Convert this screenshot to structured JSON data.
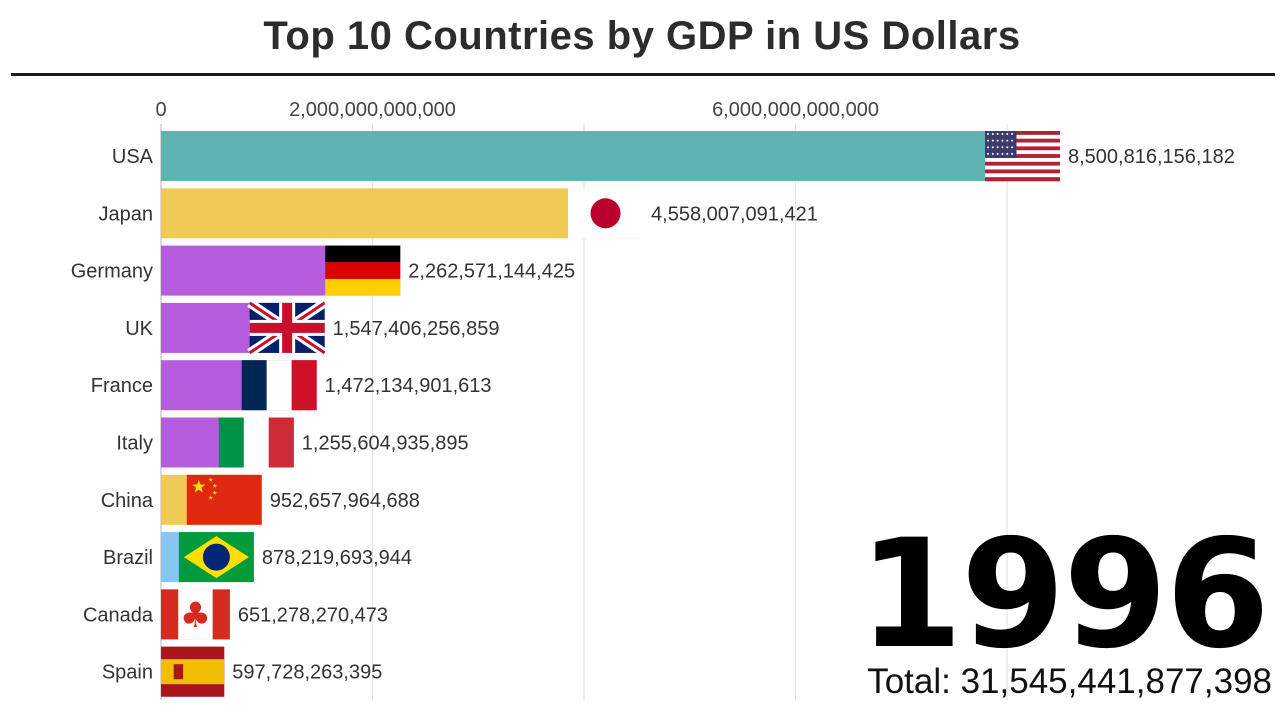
{
  "title": "Top 10 Countries by GDP in US Dollars",
  "year": "1996",
  "total_label": "Total: 31,545,441,877,398",
  "chart_data": {
    "type": "bar",
    "orientation": "horizontal",
    "title": "Top 10 Countries by GDP in US Dollars",
    "xlim": [
      0,
      8500816156182
    ],
    "x_ticks": [
      {
        "value": 0,
        "label": "0"
      },
      {
        "value": 2000000000000,
        "label": "2,000,000,000,000"
      },
      {
        "value": 4000000000000,
        "label": ""
      },
      {
        "value": 6000000000000,
        "label": "6,000,000,000,000"
      },
      {
        "value": 8000000000000,
        "label": ""
      }
    ],
    "grid": true,
    "categories": [
      "USA",
      "Japan",
      "Germany",
      "UK",
      "France",
      "Italy",
      "China",
      "Brazil",
      "Canada",
      "Spain"
    ],
    "values": [
      8500816156182,
      4558007091421,
      2262571144425,
      1547406256859,
      1472134901613,
      1255604935895,
      952657964688,
      878219693944,
      651278270473,
      597728263395
    ],
    "value_labels": [
      "8,500,816,156,182",
      "4,558,007,091,421",
      "2,262,571,144,425",
      "1,547,406,256,859",
      "1,472,134,901,613",
      "1,255,604,935,895",
      "952,657,964,688",
      "878,219,693,944",
      "651,278,270,473",
      "597,728,263,395"
    ],
    "bar_colors": [
      "#5fb3b0",
      "#efcb55",
      "#b65ddd",
      "#b65ddd",
      "#b65ddd",
      "#b65ddd",
      "#efcb55",
      "#86c6f2",
      "#5fb3b0",
      "#b65ddd"
    ],
    "flags": [
      "us-flag",
      "japan-flag",
      "germany-flag",
      "uk-flag",
      "france-flag",
      "italy-flag",
      "china-flag",
      "brazil-flag",
      "canada-flag",
      "spain-flag"
    ]
  }
}
